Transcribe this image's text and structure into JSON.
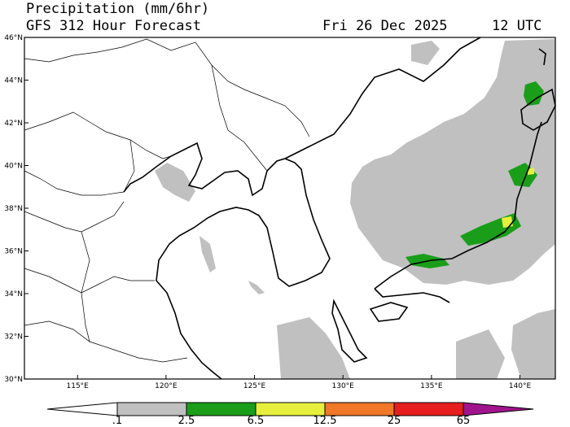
{
  "header": {
    "title": "Precipitation (mm/6hr)",
    "model": "GFS 312 Hour Forecast",
    "date": "Fri 26 Dec 2025",
    "time": "12 UTC"
  },
  "map": {
    "lat_labels": [
      "46°N",
      "44°N",
      "42°N",
      "40°N",
      "38°N",
      "36°N",
      "34°N",
      "32°N",
      "30°N"
    ],
    "lat_values": [
      46,
      44,
      42,
      40,
      38,
      36,
      34,
      32,
      30
    ],
    "lon_labels": [
      "115°E",
      "120°E",
      "125°E",
      "130°E",
      "135°E",
      "140°E"
    ],
    "lon_values": [
      115,
      120,
      125,
      130,
      135,
      140
    ],
    "lat_range": [
      30,
      46
    ],
    "lon_range": [
      112,
      142
    ]
  },
  "colorbar": {
    "labels": [
      ".1",
      "2.5",
      "6.5",
      "12.5",
      "25",
      "65"
    ],
    "colors": [
      "#c0c0c0",
      "#1a9e1a",
      "#e6f03c",
      "#f07828",
      "#e61e1e",
      "#a0148c"
    ]
  }
}
